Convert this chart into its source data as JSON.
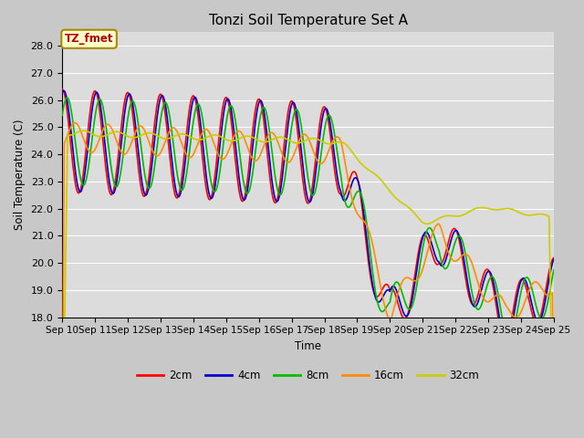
{
  "title": "Tonzi Soil Temperature Set A",
  "xlabel": "Time",
  "ylabel": "Soil Temperature (C)",
  "ylim": [
    18.0,
    28.5
  ],
  "yticks": [
    18.0,
    19.0,
    20.0,
    21.0,
    22.0,
    23.0,
    24.0,
    25.0,
    26.0,
    27.0,
    28.0
  ],
  "x_labels": [
    "Sep 10",
    "Sep 11",
    "Sep 12",
    "Sep 13",
    "Sep 14",
    "Sep 15",
    "Sep 16",
    "Sep 17",
    "Sep 18",
    "Sep 19",
    "Sep 20",
    "Sep 21",
    "Sep 22",
    "Sep 23",
    "Sep 24",
    "Sep 25"
  ],
  "series_colors": {
    "2cm": "#FF0000",
    "4cm": "#0000CC",
    "8cm": "#00BB00",
    "16cm": "#FF8C00",
    "32cm": "#CCCC00"
  },
  "annotation_text": "TZ_fmet",
  "annotation_bg": "#FFFFCC",
  "annotation_border": "#AA8800",
  "plot_bg_color": "#DCDCDC",
  "grid_color": "#FFFFFF",
  "linewidth": 1.2,
  "figsize": [
    6.4,
    4.8
  ],
  "dpi": 100
}
